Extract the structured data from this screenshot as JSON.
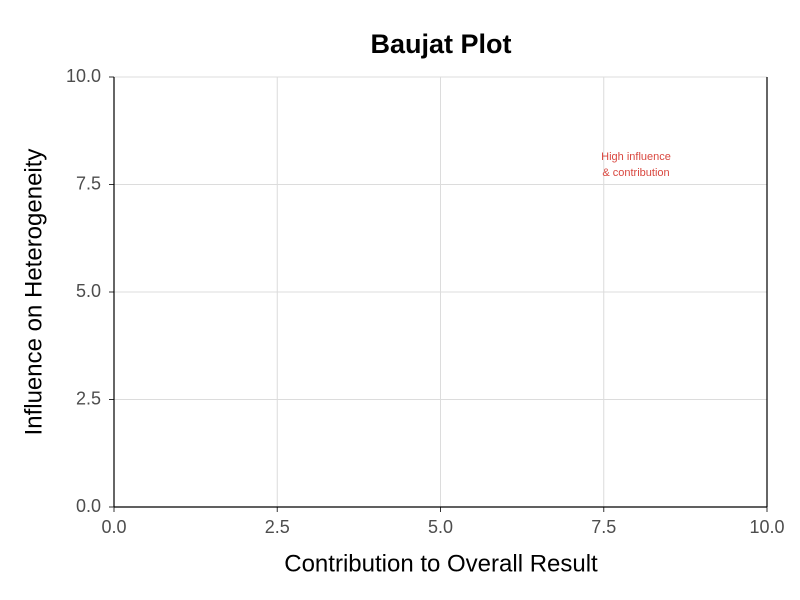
{
  "chart_data": {
    "type": "scatter",
    "title": "Baujat Plot",
    "xlabel": "Contribution to Overall Result",
    "ylabel": "Influence on Heterogeneity",
    "xlim": [
      0,
      10
    ],
    "ylim": [
      0,
      10
    ],
    "xticks": [
      {
        "value": 0,
        "label": "0.0"
      },
      2.5,
      {
        "value": 5,
        "label": "5.0"
      },
      7.5,
      {
        "value": 10,
        "label": "10.0"
      }
    ],
    "yticks": [
      {
        "value": 0,
        "label": "0.0"
      },
      2.5,
      {
        "value": 5,
        "label": "5.0"
      },
      7.5,
      {
        "value": 10,
        "label": "10.0"
      }
    ],
    "grid": true,
    "annotation": [
      "High influence",
      "& contribution"
    ],
    "annotation_color": "#d9473f"
  }
}
